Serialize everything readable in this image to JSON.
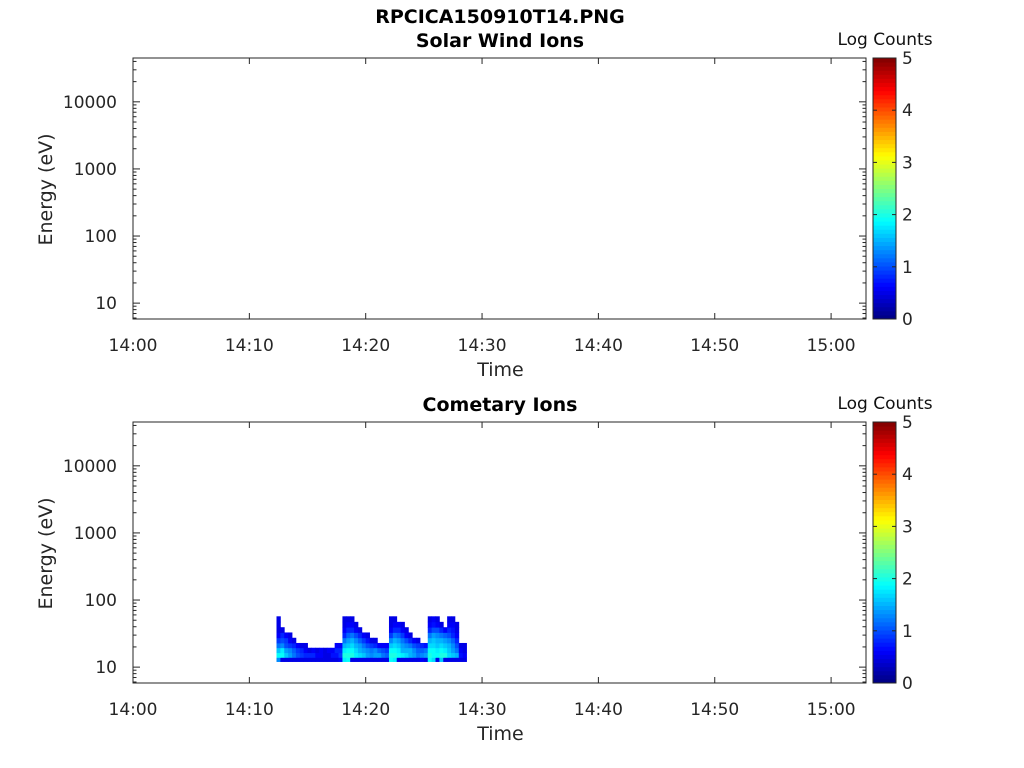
{
  "title": "RPCICA150910T14.PNG",
  "chart_data": [
    {
      "type": "heatmap",
      "title": "Solar Wind Ions",
      "xlabel": "Time",
      "ylabel": "Energy (eV)",
      "xticks": [
        "14:00",
        "14:10",
        "14:20",
        "14:30",
        "14:40",
        "14:50",
        "15:00"
      ],
      "xlim": [
        "14:00",
        "15:03"
      ],
      "yscale": "log",
      "yticks": [
        10,
        100,
        1000,
        10000
      ],
      "yticklabels": [
        "10",
        "100",
        "1000",
        "10000"
      ],
      "ylim": [
        5.8,
        45000
      ],
      "colorbar": {
        "label": "Log Counts",
        "range": [
          0,
          5
        ],
        "ticks": [
          "0",
          "1",
          "2",
          "3",
          "4",
          "5"
        ],
        "colormap": "jet"
      },
      "data_description": "empty",
      "blocks": []
    },
    {
      "type": "heatmap",
      "title": "Cometary Ions",
      "xlabel": "Time",
      "ylabel": "Energy (eV)",
      "xticks": [
        "14:00",
        "14:10",
        "14:20",
        "14:30",
        "14:40",
        "14:50",
        "15:00"
      ],
      "xlim": [
        "14:00",
        "15:03"
      ],
      "yscale": "log",
      "yticks": [
        10,
        100,
        1000,
        10000
      ],
      "yticklabels": [
        "10",
        "100",
        "1000",
        "10000"
      ],
      "ylim": [
        5.8,
        45000
      ],
      "colorbar": {
        "label": "Log Counts",
        "range": [
          0,
          5
        ],
        "ticks": [
          "0",
          "1",
          "2",
          "3",
          "4",
          "5"
        ],
        "colormap": "jet"
      },
      "blocks": [
        {
          "t_start": "14:12:20",
          "t_end": "14:28:40",
          "energy_eV": [
            13,
            15,
            18,
            21,
            25,
            30,
            36,
            43,
            52
          ],
          "rows": [
            [
              1.3,
              0.5,
              0.5,
              0.5,
              0.5,
              0.5,
              0.5,
              0.5,
              0.5,
              0.5,
              0.5,
              0.5,
              0.5,
              0.5,
              0.5,
              0.5,
              0.6,
              1.8,
              1.9,
              0.5,
              0.5,
              0.5,
              0.5,
              0.5,
              0.5,
              0.5,
              0.5,
              0.5,
              0.5,
              1.9,
              1.8,
              0.5,
              0.5,
              0.5,
              0.5,
              0.5,
              0.5,
              0.6,
              0.5,
              1.9,
              1.7,
              0.5,
              1.6,
              0.5,
              0.5,
              0.5,
              0.5,
              0.5,
              0.5
            ],
            [
              1.9,
              1.9,
              1.6,
              1.4,
              1.2,
              1.0,
              0.9,
              0.8,
              0.8,
              0.8,
              0.6,
              0.6,
              0.5,
              0.5,
              0.7,
              0.7,
              0.9,
              2.0,
              2.0,
              2.0,
              1.8,
              1.7,
              1.6,
              1.4,
              1.3,
              1.4,
              1.4,
              1.2,
              1.1,
              2.0,
              2.0,
              1.9,
              1.8,
              1.7,
              1.5,
              1.4,
              1.2,
              1.3,
              1.4,
              2.0,
              1.9,
              1.9,
              2.0,
              2.0,
              1.7,
              1.6,
              1.5,
              0.7,
              0.6
            ],
            [
              1.6,
              1.8,
              1.4,
              1.3,
              1.1,
              0.9,
              0.8,
              0.6,
              0.5,
              0.6,
              0.5,
              0.6,
              0.5,
              0.6,
              0.6,
              0.8,
              0.8,
              1.8,
              1.9,
              1.9,
              1.7,
              1.5,
              1.4,
              1.3,
              1.2,
              1.3,
              1.1,
              1.0,
              0.9,
              1.9,
              1.9,
              1.8,
              1.5,
              1.5,
              1.5,
              1.3,
              1.1,
              1.1,
              1.2,
              1.9,
              1.9,
              1.8,
              1.9,
              1.8,
              1.6,
              1.4,
              1.2,
              0.6,
              0.5
            ],
            [
              1.2,
              1.3,
              1.0,
              0.9,
              0.8,
              0.6,
              0.5,
              0.5,
              -1,
              -1,
              -1,
              -1,
              -1,
              -1,
              -1,
              0.6,
              0.6,
              1.5,
              1.6,
              1.7,
              1.5,
              1.4,
              1.2,
              1.0,
              0.9,
              0.8,
              0.6,
              0.6,
              0.6,
              1.6,
              1.7,
              1.6,
              1.4,
              1.3,
              1.2,
              1.0,
              0.9,
              0.8,
              0.7,
              1.7,
              1.7,
              1.6,
              1.7,
              1.6,
              1.5,
              1.3,
              1.0,
              0.5,
              0.5
            ],
            [
              0.9,
              1.0,
              0.9,
              0.6,
              0.5,
              -1,
              -1,
              -1,
              -1,
              -1,
              -1,
              -1,
              -1,
              -1,
              -1,
              -1,
              -1,
              1.2,
              1.4,
              1.5,
              1.3,
              1.1,
              0.9,
              0.7,
              0.5,
              0.5,
              -1,
              -1,
              -1,
              1.3,
              1.5,
              1.4,
              1.2,
              1.0,
              0.8,
              0.6,
              0.5,
              -1,
              -1,
              1.5,
              1.6,
              1.5,
              1.5,
              1.4,
              1.3,
              1.1,
              0.8,
              -1,
              -1
            ],
            [
              0.6,
              0.8,
              0.6,
              0.5,
              -1,
              -1,
              -1,
              -1,
              -1,
              -1,
              -1,
              -1,
              -1,
              -1,
              -1,
              -1,
              -1,
              0.8,
              1.1,
              1.2,
              1.0,
              0.8,
              0.6,
              0.5,
              -1,
              -1,
              -1,
              -1,
              -1,
              0.9,
              1.2,
              1.1,
              0.9,
              0.6,
              0.5,
              -1,
              -1,
              -1,
              -1,
              1.2,
              1.4,
              1.3,
              1.2,
              1.1,
              1.0,
              0.8,
              0.6,
              -1,
              -1
            ],
            [
              0.5,
              0.5,
              -1,
              -1,
              -1,
              -1,
              -1,
              -1,
              -1,
              -1,
              -1,
              -1,
              -1,
              -1,
              -1,
              -1,
              -1,
              0.6,
              0.8,
              0.8,
              0.6,
              0.5,
              -1,
              -1,
              -1,
              -1,
              -1,
              -1,
              -1,
              0.6,
              0.8,
              0.8,
              0.6,
              0.5,
              -1,
              -1,
              -1,
              -1,
              -1,
              0.8,
              1.0,
              1.0,
              0.8,
              0.6,
              0.8,
              0.7,
              0.5,
              -1,
              -1
            ],
            [
              0.5,
              -1,
              -1,
              -1,
              -1,
              -1,
              -1,
              -1,
              -1,
              -1,
              -1,
              -1,
              -1,
              -1,
              -1,
              -1,
              -1,
              0.5,
              0.6,
              0.6,
              0.5,
              -1,
              -1,
              -1,
              -1,
              -1,
              -1,
              -1,
              -1,
              0.5,
              0.6,
              0.6,
              0.5,
              -1,
              -1,
              -1,
              -1,
              -1,
              -1,
              0.6,
              0.7,
              0.6,
              0.5,
              -1,
              0.6,
              0.6,
              0.5,
              -1,
              -1
            ],
            [
              0.5,
              -1,
              -1,
              -1,
              -1,
              -1,
              -1,
              -1,
              -1,
              -1,
              -1,
              -1,
              -1,
              -1,
              -1,
              -1,
              -1,
              0.5,
              0.5,
              0.5,
              -1,
              -1,
              -1,
              -1,
              -1,
              -1,
              -1,
              -1,
              -1,
              0.5,
              0.5,
              -1,
              -1,
              -1,
              -1,
              -1,
              -1,
              -1,
              -1,
              0.5,
              0.6,
              0.5,
              -1,
              -1,
              0.5,
              0.5,
              -1,
              -1,
              -1
            ]
          ]
        }
      ]
    }
  ]
}
